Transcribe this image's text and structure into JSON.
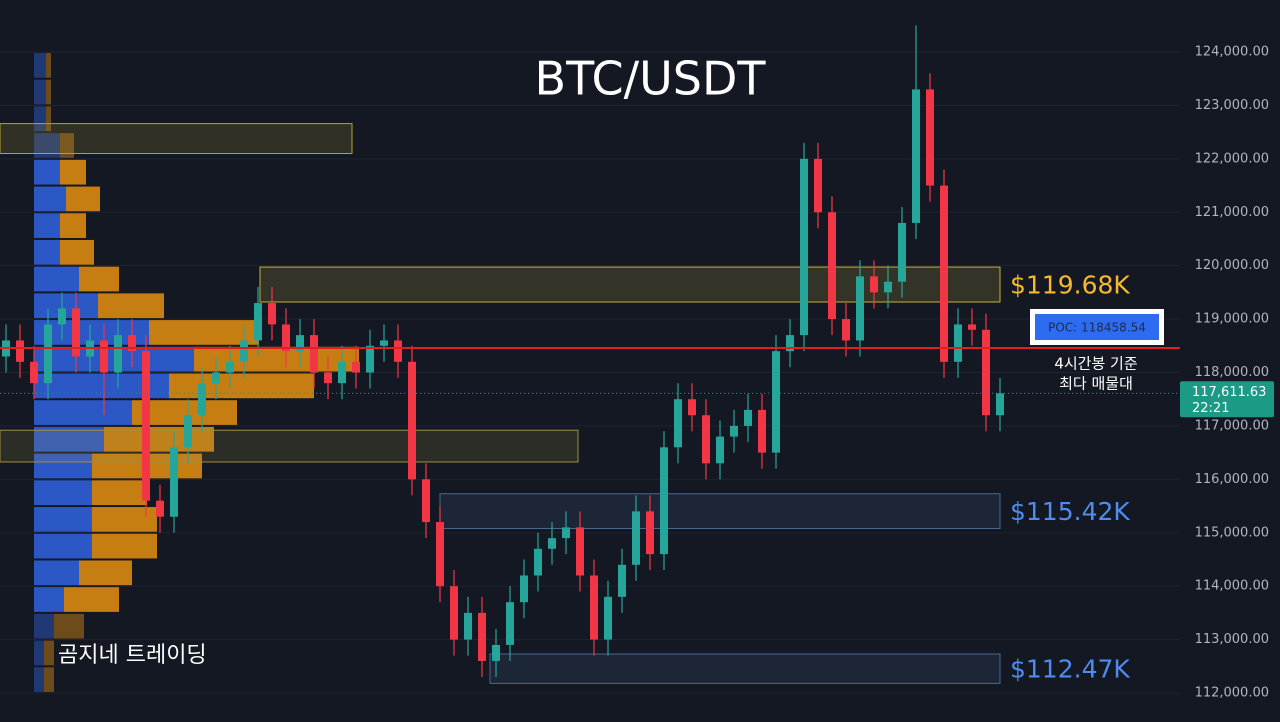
{
  "chart_data": {
    "type": "candlestick",
    "title": "BTC/USDT",
    "watermark": "곰지네 트레이딩",
    "ylim": [
      111457,
      124974
    ],
    "yticks": [
      {
        "value": 112000,
        "label": "112,000.00"
      },
      {
        "value": 113000,
        "label": "113,000.00"
      },
      {
        "value": 114000,
        "label": "114,000.00"
      },
      {
        "value": 115000,
        "label": "115,000.00"
      },
      {
        "value": 116000,
        "label": "116,000.00"
      },
      {
        "value": 117000,
        "label": "117,000.00"
      },
      {
        "value": 118000,
        "label": "118,000.00"
      },
      {
        "value": 119000,
        "label": "119,000.00"
      },
      {
        "value": 120000,
        "label": "120,000.00"
      },
      {
        "value": 121000,
        "label": "121,000.00"
      },
      {
        "value": 122000,
        "label": "122,000.00"
      },
      {
        "value": 123000,
        "label": "123,000.00"
      },
      {
        "value": 124000,
        "label": "124,000.00"
      }
    ],
    "grid": true,
    "up_color": "#26a69a",
    "down_color": "#f23645",
    "open": [
      118300,
      118600,
      118200,
      117800,
      118900,
      119200,
      118300,
      118600,
      118000,
      118700,
      118400,
      115600,
      115300,
      116600,
      117200,
      117800,
      118000,
      118200,
      118600,
      119300,
      118900,
      118400,
      118700,
      118000,
      117800,
      118200,
      118000,
      118500,
      118600,
      118200,
      116000,
      115200,
      114000,
      113000,
      113500,
      112600,
      112900,
      113700,
      114200,
      114700,
      114900,
      115100,
      114200,
      113000,
      113800,
      114400,
      115400,
      114600,
      116600,
      117500,
      117200,
      116300,
      116800,
      117000,
      117300,
      116500,
      118400,
      118700,
      122000,
      121000,
      119000,
      118600,
      119800,
      119500,
      119700,
      120800,
      123300,
      121500,
      118200,
      118900,
      118800,
      117200
    ],
    "high": [
      118900,
      118900,
      118500,
      119200,
      119500,
      119500,
      118900,
      118900,
      119000,
      119000,
      118700,
      115900,
      116900,
      117500,
      118100,
      118300,
      118500,
      118900,
      119600,
      119600,
      119200,
      119000,
      119000,
      118300,
      118500,
      118500,
      118800,
      118900,
      118900,
      118500,
      116300,
      115500,
      114300,
      113800,
      113800,
      113200,
      114000,
      114500,
      115000,
      115200,
      115400,
      115400,
      114500,
      114100,
      114700,
      115700,
      115700,
      116900,
      117800,
      117800,
      117500,
      117100,
      117300,
      117600,
      117600,
      118700,
      119000,
      122300,
      122300,
      121300,
      119300,
      120100,
      120100,
      120000,
      121100,
      124500,
      123600,
      121800,
      119200,
      119200,
      119100,
      117900
    ],
    "low": [
      118000,
      117900,
      117500,
      117500,
      118600,
      118000,
      118000,
      117200,
      117700,
      118100,
      115300,
      115000,
      115000,
      116300,
      116900,
      117500,
      117700,
      117900,
      118300,
      118600,
      118100,
      118100,
      117700,
      117500,
      117500,
      117700,
      117700,
      118200,
      117900,
      115700,
      114900,
      113700,
      112700,
      112700,
      112300,
      112300,
      112600,
      113400,
      113900,
      114400,
      114600,
      113900,
      112700,
      112700,
      113500,
      114100,
      114300,
      114300,
      116300,
      116900,
      116000,
      116000,
      116500,
      116700,
      116200,
      116200,
      118100,
      118400,
      120700,
      118700,
      118300,
      118300,
      119200,
      119200,
      119400,
      120500,
      121200,
      117900,
      117900,
      118500,
      116900,
      116900
    ],
    "close": [
      118600,
      118200,
      117800,
      118900,
      119200,
      118300,
      118600,
      118000,
      118700,
      118400,
      115600,
      115300,
      116600,
      117200,
      117800,
      118000,
      118200,
      118600,
      119300,
      118900,
      118400,
      118700,
      118000,
      117800,
      118200,
      118000,
      118500,
      118600,
      118200,
      116000,
      115200,
      114000,
      113000,
      113500,
      112600,
      112900,
      113700,
      114200,
      114700,
      114900,
      115100,
      114200,
      113000,
      113800,
      114400,
      115400,
      114600,
      116600,
      117500,
      117200,
      116300,
      116800,
      117000,
      117300,
      116500,
      118400,
      118700,
      122000,
      121000,
      119000,
      118600,
      119800,
      119500,
      119700,
      120800,
      123300,
      121500,
      118200,
      118900,
      118800,
      117200,
      117611.63
    ],
    "volume_profile": {
      "prices": [
        123750,
        123250,
        122750,
        122250,
        121750,
        121250,
        120750,
        120250,
        119750,
        119250,
        118750,
        118250,
        117750,
        117250,
        116750,
        116250,
        115750,
        115250,
        114750,
        114250,
        113750,
        113250,
        112750,
        112250
      ],
      "series": [
        {
          "name": "buy",
          "color": "#2f5fd8",
          "values": [
            12,
            12,
            12,
            26,
            26,
            32,
            26,
            26,
            45,
            64,
            115,
            160,
            135,
            98,
            70,
            58,
            58,
            58,
            58,
            45,
            30,
            20,
            10,
            10
          ]
        },
        {
          "name": "sell",
          "color": "#d98a12",
          "values": [
            5,
            5,
            5,
            14,
            26,
            34,
            26,
            34,
            40,
            66,
            110,
            165,
            145,
            105,
            110,
            110,
            55,
            65,
            65,
            53,
            55,
            30,
            10,
            10
          ]
        }
      ]
    },
    "zones": [
      {
        "top": 122660,
        "bottom": 122100,
        "color": "#b8a030"
      },
      {
        "top": 119974,
        "bottom": 119320,
        "label": "$119.68K",
        "label_color": "#f5b82e",
        "color": "#c8b040"
      },
      {
        "top": 116920,
        "bottom": 116325,
        "color": "#a09040"
      },
      {
        "top": 115730,
        "bottom": 115080,
        "label": "$115.42K",
        "label_color": "#4f8cf0",
        "color": "#4a6a90"
      },
      {
        "top": 112730,
        "bottom": 112180,
        "label": "$112.47K",
        "label_color": "#4f8cf0",
        "color": "#4a6a90"
      }
    ],
    "poc": {
      "value": 118458.54,
      "label": "POC: 118458.54",
      "color": "#e02020",
      "note": [
        "4시간봉 기준",
        "최다 매물대"
      ]
    },
    "last_price": {
      "value": 117611.63,
      "label": "117,611.63",
      "countdown": "22:21",
      "color": "#1b9a86"
    }
  }
}
